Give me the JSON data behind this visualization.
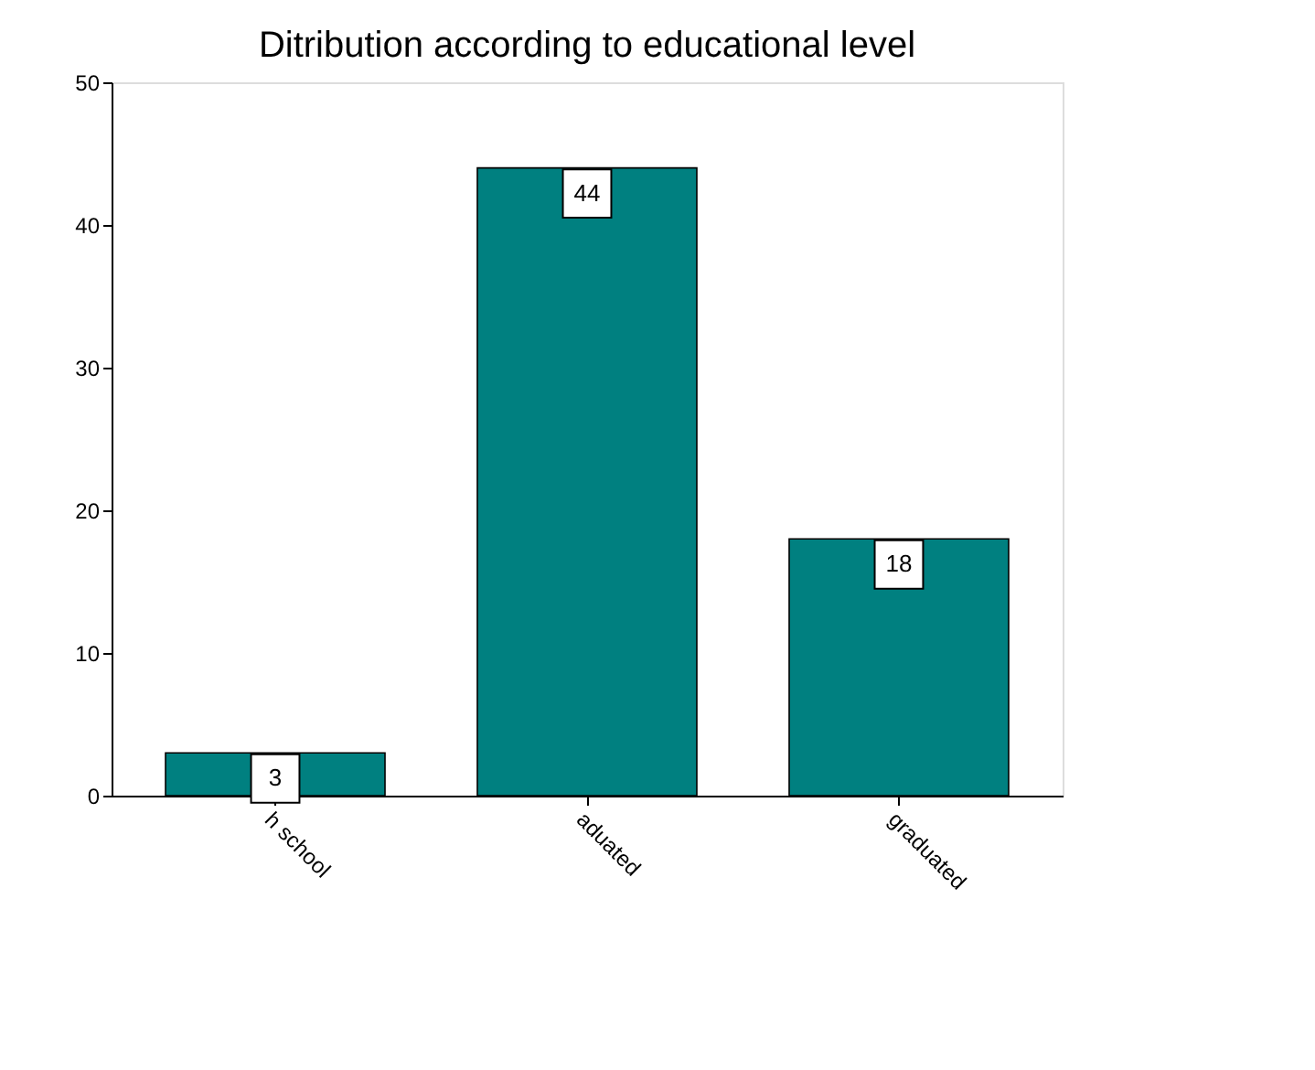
{
  "chart_data": {
    "type": "bar",
    "title": "Ditribution according to educational level",
    "categories": [
      "h school",
      "aduated",
      "graduated"
    ],
    "values": [
      3,
      44,
      18
    ],
    "color": "#008080",
    "ylim": [
      0,
      50
    ],
    "yticks": [
      0,
      10,
      20,
      30,
      40,
      50
    ],
    "grid": false,
    "data_labels": true
  }
}
